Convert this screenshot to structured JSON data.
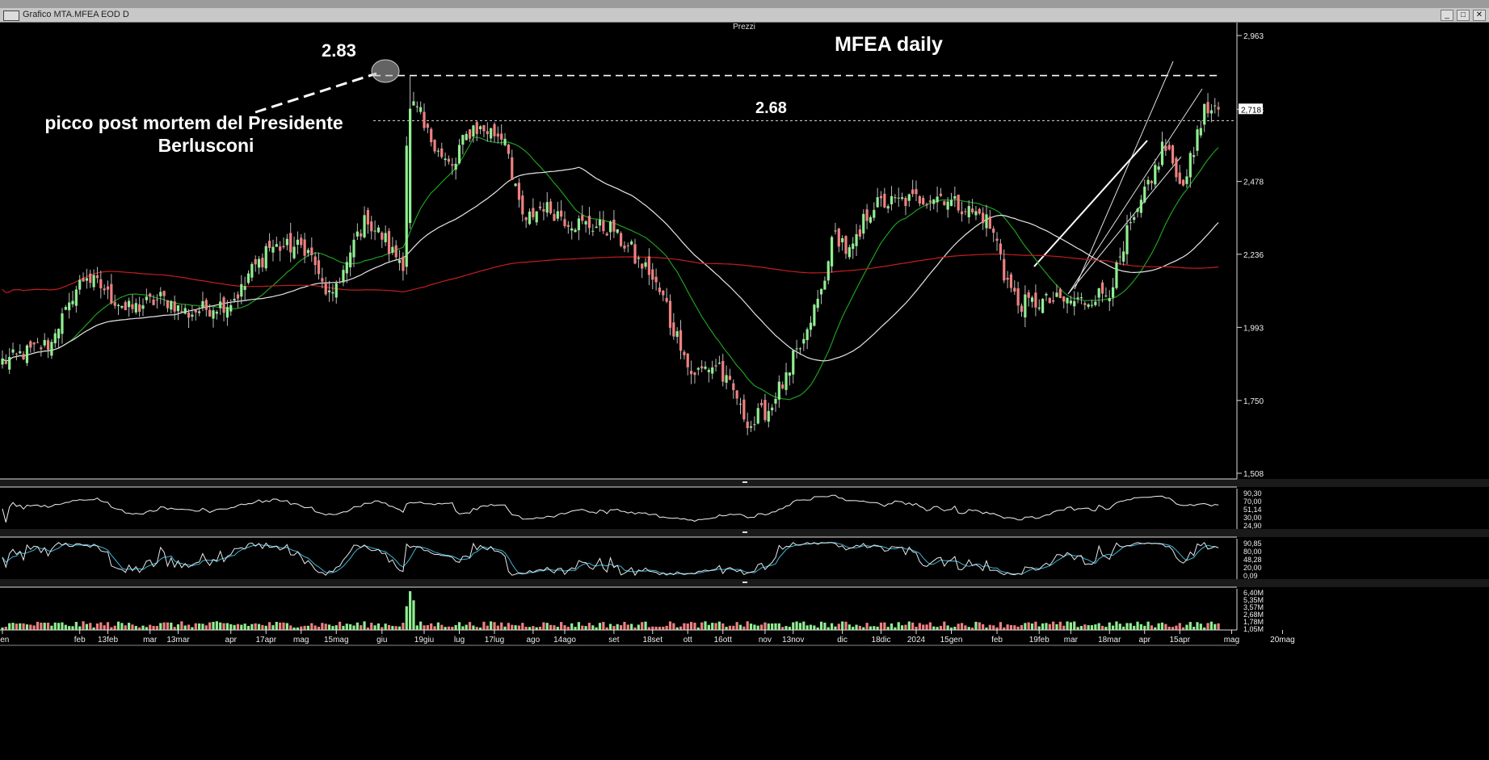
{
  "window": {
    "title": "Grafico MTA.MFEA EOD D",
    "buttons": [
      "_",
      "□",
      "✕"
    ]
  },
  "panel_label": "Prezzi",
  "chart_data": {
    "type": "candlestick",
    "title": "MFEA daily",
    "y_ticks": [
      "2,963",
      "2,718",
      "2,478",
      "2,236",
      "1,993",
      "1,750",
      "1,508"
    ],
    "y_range": [
      1.508,
      2.963
    ],
    "price_tag": "2,718",
    "x_ticks": [
      "gen",
      "feb",
      "13feb",
      "mar",
      "13mar",
      "apr",
      "17apr",
      "mag",
      "15mag",
      "giu",
      "19giu",
      "lug",
      "17lug",
      "ago",
      "14ago",
      "set",
      "18set",
      "ott",
      "16ott",
      "nov",
      "13nov",
      "dic",
      "18dic",
      "2024",
      "15gen",
      "feb",
      "19feb",
      "mar",
      "18mar",
      "apr",
      "15apr",
      "mag",
      "20mag"
    ],
    "anchors": [
      {
        "date": "2023-01-02",
        "close": 1.88
      },
      {
        "date": "2023-01-20",
        "close": 1.94
      },
      {
        "date": "2023-02-03",
        "close": 2.17
      },
      {
        "date": "2023-02-20",
        "close": 2.05
      },
      {
        "date": "2023-03-06",
        "close": 2.09
      },
      {
        "date": "2023-03-16",
        "close": 2.04
      },
      {
        "date": "2023-04-03",
        "close": 2.08
      },
      {
        "date": "2023-04-17",
        "close": 2.26
      },
      {
        "date": "2023-05-02",
        "close": 2.26
      },
      {
        "date": "2023-05-12",
        "close": 2.08
      },
      {
        "date": "2023-05-26",
        "close": 2.36
      },
      {
        "date": "2023-06-09",
        "close": 2.21
      },
      {
        "date": "2023-06-13",
        "close": 2.74
      },
      {
        "date": "2023-06-21",
        "close": 2.62
      },
      {
        "date": "2023-06-29",
        "close": 2.52
      },
      {
        "date": "2023-07-07",
        "close": 2.66
      },
      {
        "date": "2023-07-20",
        "close": 2.63
      },
      {
        "date": "2023-07-28",
        "close": 2.33
      },
      {
        "date": "2023-08-04",
        "close": 2.4
      },
      {
        "date": "2023-08-17",
        "close": 2.34
      },
      {
        "date": "2023-09-01",
        "close": 2.32
      },
      {
        "date": "2023-09-18",
        "close": 2.15
      },
      {
        "date": "2023-10-03",
        "close": 1.84
      },
      {
        "date": "2023-10-13",
        "close": 1.87
      },
      {
        "date": "2023-10-26",
        "close": 1.67
      },
      {
        "date": "2023-11-02",
        "close": 1.72
      },
      {
        "date": "2023-11-10",
        "close": 1.83
      },
      {
        "date": "2023-11-20",
        "close": 2.02
      },
      {
        "date": "2023-11-29",
        "close": 2.3
      },
      {
        "date": "2023-12-05",
        "close": 2.24
      },
      {
        "date": "2023-12-14",
        "close": 2.4
      },
      {
        "date": "2024-01-10",
        "close": 2.43
      },
      {
        "date": "2024-01-29",
        "close": 2.35
      },
      {
        "date": "2024-02-09",
        "close": 2.07
      },
      {
        "date": "2024-02-23",
        "close": 2.08
      },
      {
        "date": "2024-03-07",
        "close": 2.08
      },
      {
        "date": "2024-03-18",
        "close": 2.12
      },
      {
        "date": "2024-03-22",
        "close": 2.24
      },
      {
        "date": "2024-04-08",
        "close": 2.6
      },
      {
        "date": "2024-04-15",
        "close": 2.46
      },
      {
        "date": "2024-04-24",
        "close": 2.71
      },
      {
        "date": "2024-04-30",
        "close": 2.7
      }
    ],
    "moving_averages": [
      {
        "period": 20,
        "color": "#1f9e1f"
      },
      {
        "period": 50,
        "color": "#e6e6e6"
      },
      {
        "period": 200,
        "color": "#c41e1e"
      }
    ],
    "annotations": [
      {
        "text": "2.83",
        "value": 2.83
      },
      {
        "text": "2.68",
        "value": 2.68
      },
      {
        "text": "picco post mortem del Presidente"
      },
      {
        "text": "Berlusconi"
      }
    ],
    "oscillator1": {
      "ticks": [
        "90,30",
        "70,00",
        "51,14",
        "30,00",
        "24,90"
      ]
    },
    "oscillator2": {
      "ticks": [
        "90,85",
        "80,00",
        "48,28",
        "20,00",
        "0,09"
      ]
    },
    "volume": {
      "ticks": [
        "6,40M",
        "5,35M",
        "3,57M",
        "2,68M",
        "1,78M",
        "1,05M"
      ]
    }
  }
}
